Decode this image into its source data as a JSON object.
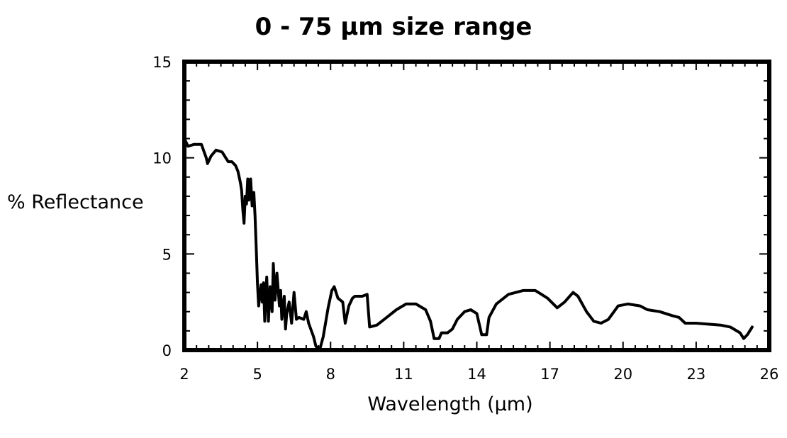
{
  "chart_data": {
    "type": "line",
    "title": "0 - 75 µm size range",
    "xlabel": "Wavelength (µm)",
    "ylabel": "% Reflectance",
    "xlim": [
      2,
      26
    ],
    "ylim": [
      0,
      15
    ],
    "x_ticks": [
      2,
      5,
      8,
      11,
      14,
      17,
      20,
      23,
      26
    ],
    "y_ticks": [
      0,
      5,
      10,
      15
    ],
    "grid": false,
    "legend": "none",
    "line_color": "#000000",
    "series": [
      {
        "points": [
          [
            2.0,
            11.0
          ],
          [
            2.15,
            10.6
          ],
          [
            2.4,
            10.7
          ],
          [
            2.7,
            10.7
          ],
          [
            2.9,
            10.0
          ],
          [
            2.95,
            9.7
          ],
          [
            3.1,
            10.1
          ],
          [
            3.3,
            10.4
          ],
          [
            3.55,
            10.3
          ],
          [
            3.7,
            10.0
          ],
          [
            3.8,
            9.8
          ],
          [
            3.95,
            9.8
          ],
          [
            4.1,
            9.6
          ],
          [
            4.2,
            9.3
          ],
          [
            4.3,
            8.7
          ],
          [
            4.35,
            8.3
          ],
          [
            4.4,
            7.3
          ],
          [
            4.45,
            6.6
          ],
          [
            4.5,
            8.0
          ],
          [
            4.55,
            7.6
          ],
          [
            4.6,
            8.9
          ],
          [
            4.65,
            7.8
          ],
          [
            4.72,
            8.9
          ],
          [
            4.78,
            7.5
          ],
          [
            4.85,
            8.2
          ],
          [
            4.9,
            7.0
          ],
          [
            4.95,
            5.3
          ],
          [
            5.0,
            3.5
          ],
          [
            5.05,
            2.3
          ],
          [
            5.15,
            3.4
          ],
          [
            5.2,
            2.5
          ],
          [
            5.25,
            3.5
          ],
          [
            5.3,
            1.5
          ],
          [
            5.38,
            3.8
          ],
          [
            5.45,
            1.5
          ],
          [
            5.52,
            3.3
          ],
          [
            5.6,
            2.0
          ],
          [
            5.65,
            4.5
          ],
          [
            5.72,
            2.6
          ],
          [
            5.8,
            4.0
          ],
          [
            5.9,
            2.3
          ],
          [
            5.95,
            3.1
          ],
          [
            6.0,
            1.6
          ],
          [
            6.1,
            2.8
          ],
          [
            6.15,
            1.1
          ],
          [
            6.2,
            1.9
          ],
          [
            6.3,
            2.5
          ],
          [
            6.4,
            1.4
          ],
          [
            6.5,
            3.0
          ],
          [
            6.6,
            1.6
          ],
          [
            6.7,
            1.7
          ],
          [
            6.9,
            1.6
          ],
          [
            7.0,
            2.0
          ],
          [
            7.1,
            1.4
          ],
          [
            7.3,
            0.7
          ],
          [
            7.4,
            0.2
          ],
          [
            7.55,
            0.0
          ],
          [
            7.7,
            0.7
          ],
          [
            7.9,
            2.2
          ],
          [
            8.05,
            3.1
          ],
          [
            8.15,
            3.3
          ],
          [
            8.3,
            2.7
          ],
          [
            8.5,
            2.5
          ],
          [
            8.6,
            1.4
          ],
          [
            8.75,
            2.3
          ],
          [
            8.9,
            2.7
          ],
          [
            9.0,
            2.8
          ],
          [
            9.3,
            2.8
          ],
          [
            9.5,
            2.9
          ],
          [
            9.6,
            1.2
          ],
          [
            9.9,
            1.3
          ],
          [
            10.3,
            1.7
          ],
          [
            10.7,
            2.1
          ],
          [
            11.1,
            2.4
          ],
          [
            11.5,
            2.4
          ],
          [
            11.9,
            2.1
          ],
          [
            12.1,
            1.5
          ],
          [
            12.25,
            0.6
          ],
          [
            12.45,
            0.6
          ],
          [
            12.55,
            0.9
          ],
          [
            12.8,
            0.9
          ],
          [
            13.0,
            1.1
          ],
          [
            13.2,
            1.6
          ],
          [
            13.5,
            2.0
          ],
          [
            13.75,
            2.1
          ],
          [
            14.0,
            1.9
          ],
          [
            14.2,
            0.8
          ],
          [
            14.4,
            0.8
          ],
          [
            14.5,
            1.7
          ],
          [
            14.8,
            2.4
          ],
          [
            15.3,
            2.9
          ],
          [
            15.9,
            3.1
          ],
          [
            16.4,
            3.1
          ],
          [
            16.9,
            2.7
          ],
          [
            17.3,
            2.2
          ],
          [
            17.6,
            2.5
          ],
          [
            17.95,
            3.0
          ],
          [
            18.15,
            2.8
          ],
          [
            18.5,
            2.0
          ],
          [
            18.8,
            1.5
          ],
          [
            19.1,
            1.4
          ],
          [
            19.4,
            1.6
          ],
          [
            19.8,
            2.3
          ],
          [
            20.2,
            2.4
          ],
          [
            20.7,
            2.3
          ],
          [
            21.0,
            2.1
          ],
          [
            21.5,
            2.0
          ],
          [
            22.0,
            1.8
          ],
          [
            22.3,
            1.7
          ],
          [
            22.55,
            1.4
          ],
          [
            23.0,
            1.4
          ],
          [
            23.5,
            1.35
          ],
          [
            24.0,
            1.3
          ],
          [
            24.4,
            1.2
          ],
          [
            24.8,
            0.9
          ],
          [
            24.95,
            0.6
          ],
          [
            25.1,
            0.8
          ],
          [
            25.3,
            1.2
          ]
        ]
      }
    ]
  }
}
